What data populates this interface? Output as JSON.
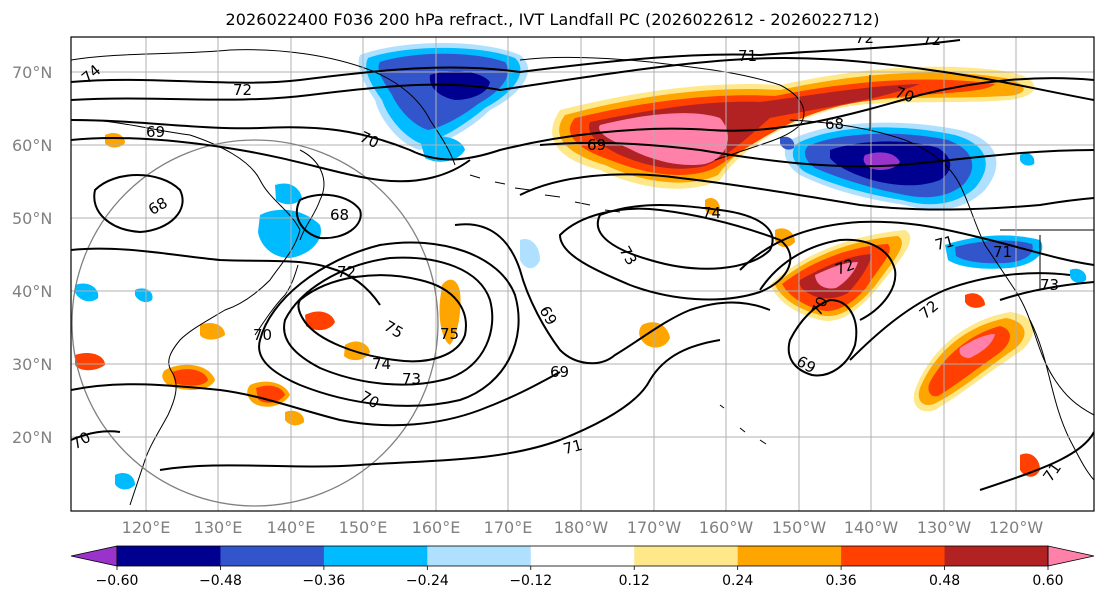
{
  "title": "2026022400 F036 200 hPa refract., IVT Landfall PC (2026022612 - 2026022712)",
  "colors": {
    "outline": "#000000",
    "grid": "#b0b0b0",
    "circle": "#808080",
    "neg_060": "#9933cc",
    "neg_048": "#000090",
    "neg_036": "#3355cc",
    "neg_024": "#00bbff",
    "neg_012": "#b0e0ff",
    "zero": "#ffffff",
    "pos_012": "#ffe88a",
    "pos_024": "#ffa500",
    "pos_036": "#ff4000",
    "pos_048": "#b22222",
    "pos_060": "#ff80a8"
  },
  "map": {
    "lat_labels": [
      "70°N",
      "60°N",
      "50°N",
      "40°N",
      "30°N",
      "20°N"
    ],
    "lon_labels": [
      "120°E",
      "130°E",
      "140°E",
      "150°E",
      "160°E",
      "170°E",
      "180°W",
      "170°W",
      "160°W",
      "150°W",
      "140°W",
      "130°W",
      "120°W"
    ],
    "contour_labels": [
      "74",
      "72",
      "71",
      "72",
      "72",
      "69",
      "70",
      "70",
      "68",
      "68",
      "69",
      "68",
      "74",
      "70",
      "72",
      "73",
      "71",
      "71",
      "73",
      "72",
      "75",
      "75",
      "74",
      "73",
      "69",
      "69",
      "70",
      "69",
      "70",
      "72",
      "71",
      "71",
      "70"
    ]
  },
  "colorbar": {
    "colors": [
      "#9933cc",
      "#000090",
      "#3355cc",
      "#00bbff",
      "#b0e0ff",
      "#ffffff",
      "#ffe88a",
      "#ffa500",
      "#ff4000",
      "#b22222",
      "#ff80a8"
    ],
    "tick_labels": [
      "−0.60",
      "−0.48",
      "−0.36",
      "−0.24",
      "−0.12",
      "0.12",
      "0.24",
      "0.36",
      "0.48",
      "0.60"
    ]
  }
}
